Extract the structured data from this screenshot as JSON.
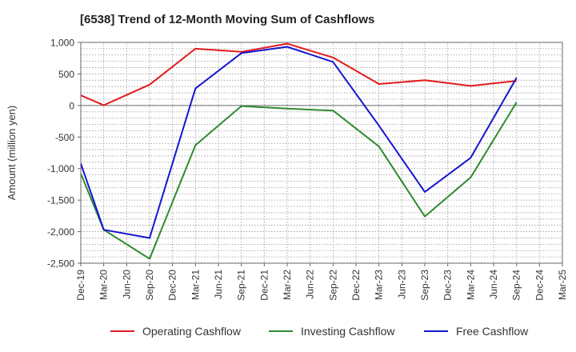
{
  "chart_data": {
    "type": "line",
    "title": "[6538]  Trend of 12-Month Moving Sum of Cashflows",
    "xlabel": "",
    "ylabel": "Amount (million yen)",
    "ylim": [
      -2500,
      1000
    ],
    "yticks": [
      1000,
      500,
      0,
      -500,
      -1000,
      -1500,
      -2000,
      -2500
    ],
    "ytick_labels": [
      "1,000",
      "500",
      "0",
      "-500",
      "-1,000",
      "-1,500",
      "-2,000",
      "-2,500"
    ],
    "categories": [
      "Dec-19",
      "Mar-20",
      "Jun-20",
      "Sep-20",
      "Dec-20",
      "Mar-21",
      "Jun-21",
      "Sep-21",
      "Dec-21",
      "Mar-22",
      "Jun-22",
      "Sep-22",
      "Dec-22",
      "Mar-23",
      "Jun-23",
      "Sep-23",
      "Dec-23",
      "Mar-24",
      "Jun-24",
      "Sep-24",
      "Dec-24",
      "Mar-25"
    ],
    "grid": true,
    "legend_position": "bottom",
    "series": [
      {
        "name": "Operating Cashflow",
        "color": "#e31a1c",
        "points": [
          [
            0,
            160
          ],
          [
            1,
            5
          ],
          [
            3,
            330
          ],
          [
            5,
            900
          ],
          [
            7,
            850
          ],
          [
            9,
            980
          ],
          [
            11,
            760
          ],
          [
            13,
            340
          ],
          [
            15,
            400
          ],
          [
            17,
            310
          ],
          [
            19,
            390
          ]
        ]
      },
      {
        "name": "Investing Cashflow",
        "color": "#2e8b2e",
        "points": [
          [
            0,
            -1080
          ],
          [
            1,
            -1970
          ],
          [
            3,
            -2430
          ],
          [
            5,
            -630
          ],
          [
            7,
            -10
          ],
          [
            9,
            -50
          ],
          [
            11,
            -80
          ],
          [
            13,
            -650
          ],
          [
            15,
            -1760
          ],
          [
            17,
            -1140
          ],
          [
            19,
            50
          ]
        ]
      },
      {
        "name": "Free Cashflow",
        "color": "#1515d0",
        "points": [
          [
            0,
            -920
          ],
          [
            1,
            -1970
          ],
          [
            3,
            -2100
          ],
          [
            5,
            270
          ],
          [
            7,
            830
          ],
          [
            9,
            930
          ],
          [
            11,
            690
          ],
          [
            13,
            -320
          ],
          [
            15,
            -1370
          ],
          [
            17,
            -830
          ],
          [
            19,
            440
          ]
        ]
      }
    ]
  }
}
